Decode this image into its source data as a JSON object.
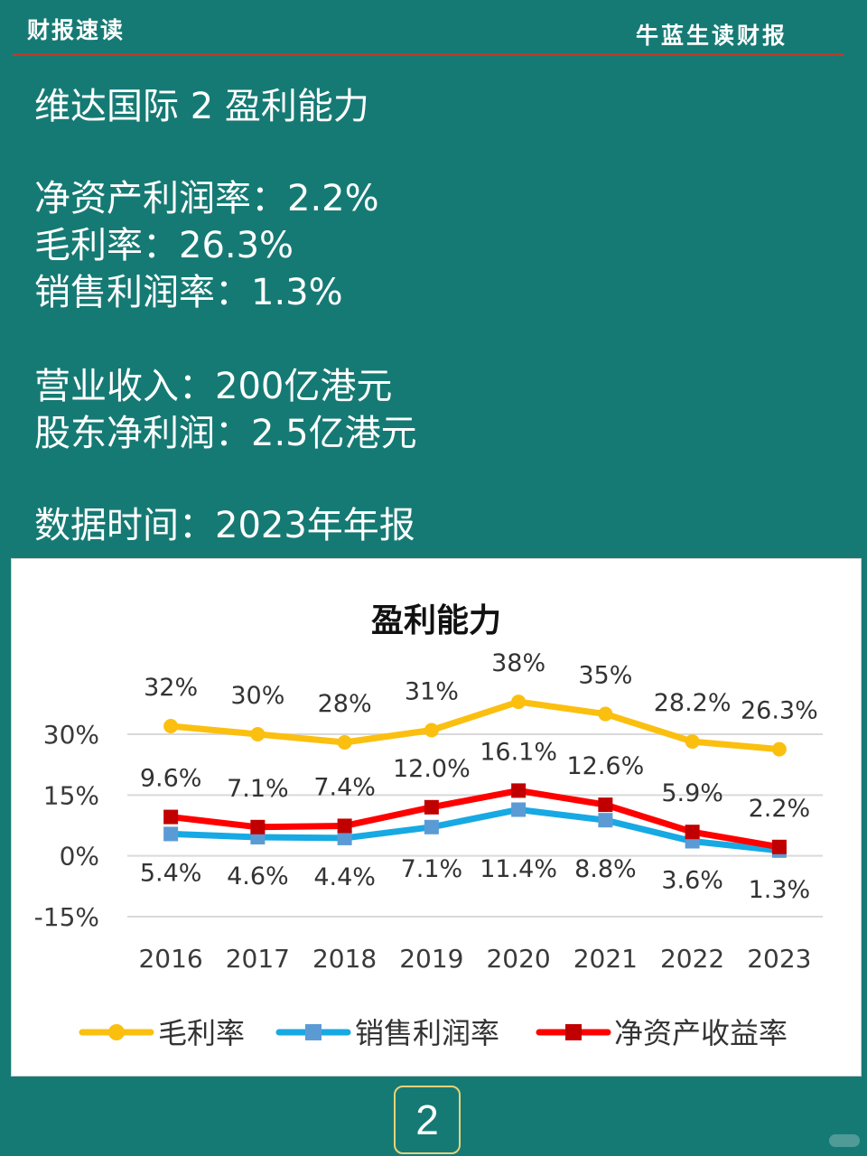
{
  "header": {
    "left_title": "财报速读",
    "right_title": "牛蓝生读财报"
  },
  "content": {
    "heading": "维达国际 2 盈利能力",
    "roe_line": "净资产利润率：2.2%",
    "gross_margin_line": "毛利率：26.3%",
    "net_margin_line": "销售利润率：1.3%",
    "revenue_line": "营业收入：200亿港元",
    "profit_line": "股东净利润：2.5亿港元",
    "data_time_line": "数据时间：2023年年报"
  },
  "page_number": "2",
  "colors": {
    "background": "#167a74",
    "header_rule": "#c0392b",
    "gross_margin": "#fbbf10",
    "net_margin": "#17a9e3",
    "net_margin_marker": "#5b9bd5",
    "roe": "#ff0000",
    "roe_marker": "#c00000"
  },
  "chart_data": {
    "type": "line",
    "title": "盈利能力",
    "xlabel": "",
    "ylabel": "",
    "categories": [
      "2016",
      "2017",
      "2018",
      "2019",
      "2020",
      "2021",
      "2022",
      "2023"
    ],
    "ylim": [
      -15,
      30
    ],
    "yticks": [
      30,
      15,
      0,
      -15
    ],
    "ytick_labels": [
      "30%",
      "15%",
      "0%",
      "-15%"
    ],
    "grid": true,
    "legend_position": "bottom",
    "series": [
      {
        "name": "毛利率",
        "values": [
          32,
          30,
          28,
          31,
          38,
          35,
          28.2,
          26.3
        ],
        "labels": [
          "32%",
          "30%",
          "28%",
          "31%",
          "38%",
          "35%",
          "28.2%",
          "26.3%"
        ],
        "label_position": "above",
        "marker": "circle",
        "color": "#fbbf10"
      },
      {
        "name": "销售利润率",
        "values": [
          5.4,
          4.6,
          4.4,
          7.1,
          11.4,
          8.8,
          3.6,
          1.3
        ],
        "labels": [
          "5.4%",
          "4.6%",
          "4.4%",
          "7.1%",
          "11.4%",
          "8.8%",
          "3.6%",
          "1.3%"
        ],
        "label_position": "below",
        "marker": "square",
        "color": "#17a9e3"
      },
      {
        "name": "净资产收益率",
        "values": [
          9.6,
          7.1,
          7.4,
          12.0,
          16.1,
          12.6,
          5.9,
          2.2
        ],
        "labels": [
          "9.6%",
          "7.1%",
          "7.4%",
          "12.0%",
          "16.1%",
          "12.6%",
          "5.9%",
          "2.2%"
        ],
        "label_position": "above",
        "marker": "square",
        "color": "#ff0000"
      }
    ]
  }
}
